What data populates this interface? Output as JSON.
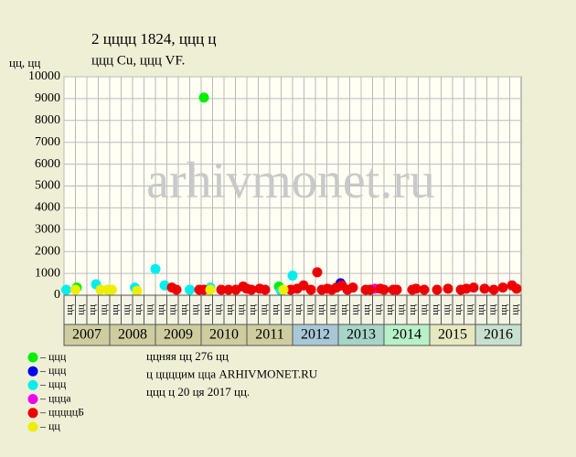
{
  "chart_data": {
    "type": "scatter",
    "title": "2 цццц 1824, ццц ц",
    "subtitle": "ццц Cu, ццц VF.",
    "y_label": "цц, цц",
    "watermark": "arhivmonet.ru",
    "xlim": [
      2007,
      2017
    ],
    "ylim": [
      0,
      10000
    ],
    "yticks": [
      0,
      1000,
      2000,
      3000,
      4000,
      5000,
      6000,
      7000,
      8000,
      9000,
      10000
    ],
    "grid": true,
    "year_labels": [
      "2007",
      "2008",
      "2009",
      "2010",
      "2011",
      "2012",
      "2013",
      "2014",
      "2015",
      "2016"
    ],
    "year_colors": [
      "#cdcda0",
      "#cdcda0",
      "#cdcda0",
      "#cdcda0",
      "#cdcda0",
      "#a8c8d8",
      "#a8d4c8",
      "#b8f0c8",
      "#e8e8c0",
      "#c8e0d0"
    ],
    "quarter_labels": [
      "цц",
      "цц",
      "цц",
      "цц"
    ],
    "series": [
      {
        "name": "– ццц",
        "color": "#00ee00",
        "x": [
          2007.28,
          2010.06,
          2011.7
        ],
        "values": [
          350,
          9050,
          400
        ]
      },
      {
        "name": "– ццц",
        "color": "#0000ee",
        "x": [
          2013.05
        ],
        "values": [
          550
        ]
      },
      {
        "name": "– ццц",
        "color": "#00eeee",
        "x": [
          2007.05,
          2007.7,
          2008.55,
          2009.0,
          2009.2,
          2009.75,
          2010.2,
          2011.75,
          2012.0
        ],
        "values": [
          250,
          500,
          350,
          1200,
          450,
          250,
          350,
          200,
          900
        ]
      },
      {
        "name": "– ццца",
        "color": "#ee00ee",
        "x": [
          2013.8
        ],
        "values": [
          300
        ]
      },
      {
        "name": "– цццццБ",
        "color": "#ee0000",
        "x": [
          2009.36,
          2009.46,
          2009.96,
          2010.06,
          2010.44,
          2010.6,
          2010.76,
          2010.92,
          2011.0,
          2011.1,
          2011.28,
          2011.4,
          2011.96,
          2012.1,
          2012.24,
          2012.4,
          2012.54,
          2012.64,
          2012.76,
          2012.86,
          2012.96,
          2013.08,
          2013.2,
          2013.32,
          2013.6,
          2013.7,
          2013.92,
          2014.0,
          2014.2,
          2014.28,
          2014.62,
          2014.7,
          2014.88,
          2015.16,
          2015.4,
          2015.68,
          2015.8,
          2015.96,
          2016.2,
          2016.4,
          2016.6,
          2016.8,
          2016.9
        ],
        "values": [
          350,
          250,
          250,
          250,
          250,
          250,
          250,
          400,
          300,
          250,
          300,
          250,
          250,
          300,
          450,
          250,
          1050,
          250,
          300,
          250,
          350,
          450,
          250,
          350,
          250,
          250,
          300,
          250,
          250,
          250,
          250,
          300,
          250,
          250,
          300,
          250,
          300,
          350,
          300,
          250,
          350,
          450,
          300
        ]
      },
      {
        "name": "– цц",
        "color": "#eeee00",
        "x": [
          2007.25,
          2007.8,
          2007.95,
          2008.05,
          2008.6,
          2010.2,
          2011.8
        ],
        "values": [
          250,
          250,
          250,
          250,
          200,
          250,
          250
        ]
      }
    ],
    "notes": [
      "ццняя цц 276 цц",
      "ц ццццим цца ARHIVMONET.RU",
      "ццц ц 20 ця 2017 цц."
    ]
  }
}
